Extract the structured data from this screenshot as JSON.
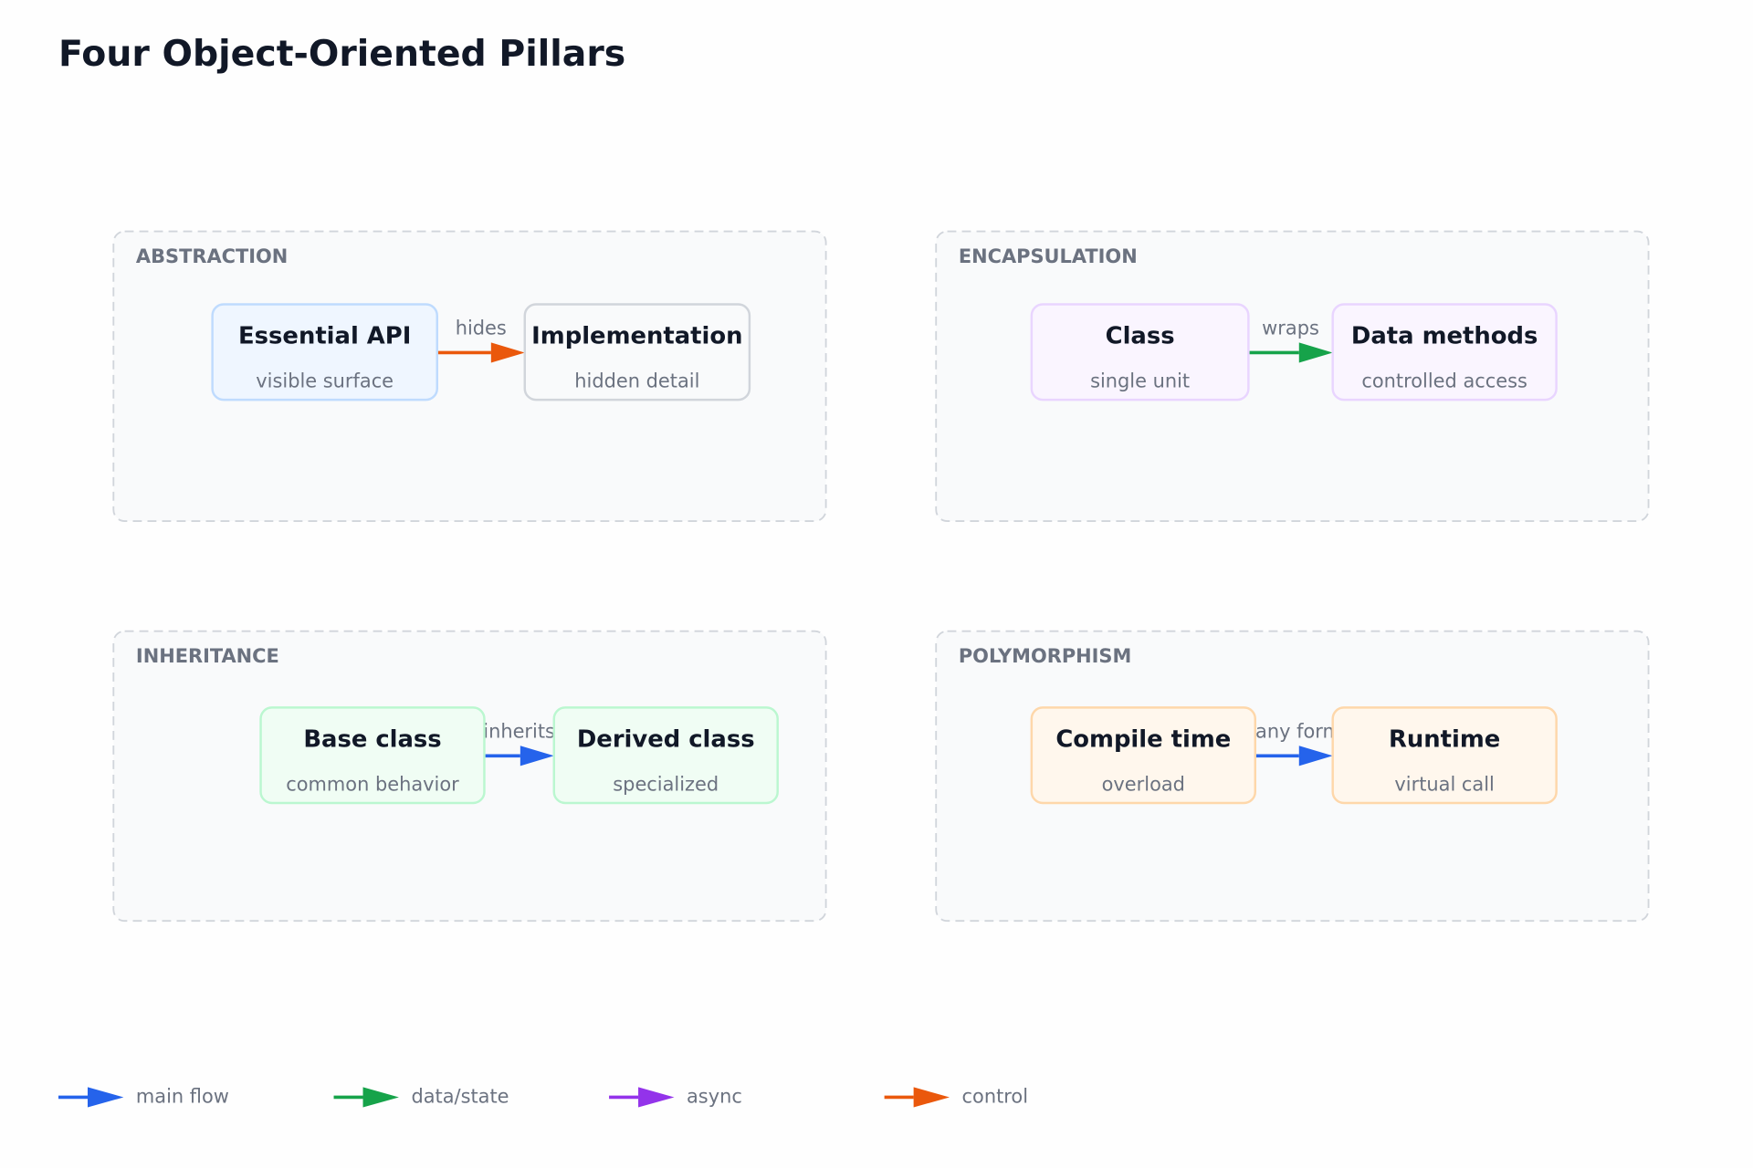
{
  "title": "Four Object-Oriented Pillars",
  "groups": [
    {
      "label": "ABSTRACTION",
      "nodes": [
        {
          "title": "Essential API",
          "subtitle": "visible surface"
        },
        {
          "title": "Implementation",
          "subtitle": "hidden detail"
        }
      ],
      "edge": {
        "label": "hides"
      }
    },
    {
      "label": "ENCAPSULATION",
      "nodes": [
        {
          "title": "Class",
          "subtitle": "single unit"
        },
        {
          "title": "Data methods",
          "subtitle": "controlled access"
        }
      ],
      "edge": {
        "label": "wraps"
      }
    },
    {
      "label": "INHERITANCE",
      "nodes": [
        {
          "title": "Base class",
          "subtitle": "common behavior"
        },
        {
          "title": "Derived class",
          "subtitle": "specialized"
        }
      ],
      "edge": {
        "label": "inherits"
      }
    },
    {
      "label": "POLYMORPHISM",
      "nodes": [
        {
          "title": "Compile time",
          "subtitle": "overload"
        },
        {
          "title": "Runtime",
          "subtitle": "virtual call"
        }
      ],
      "edge": {
        "label": "many forms"
      }
    }
  ],
  "legend": [
    {
      "label": "main flow"
    },
    {
      "label": "data/state"
    },
    {
      "label": "async"
    },
    {
      "label": "control"
    }
  ]
}
